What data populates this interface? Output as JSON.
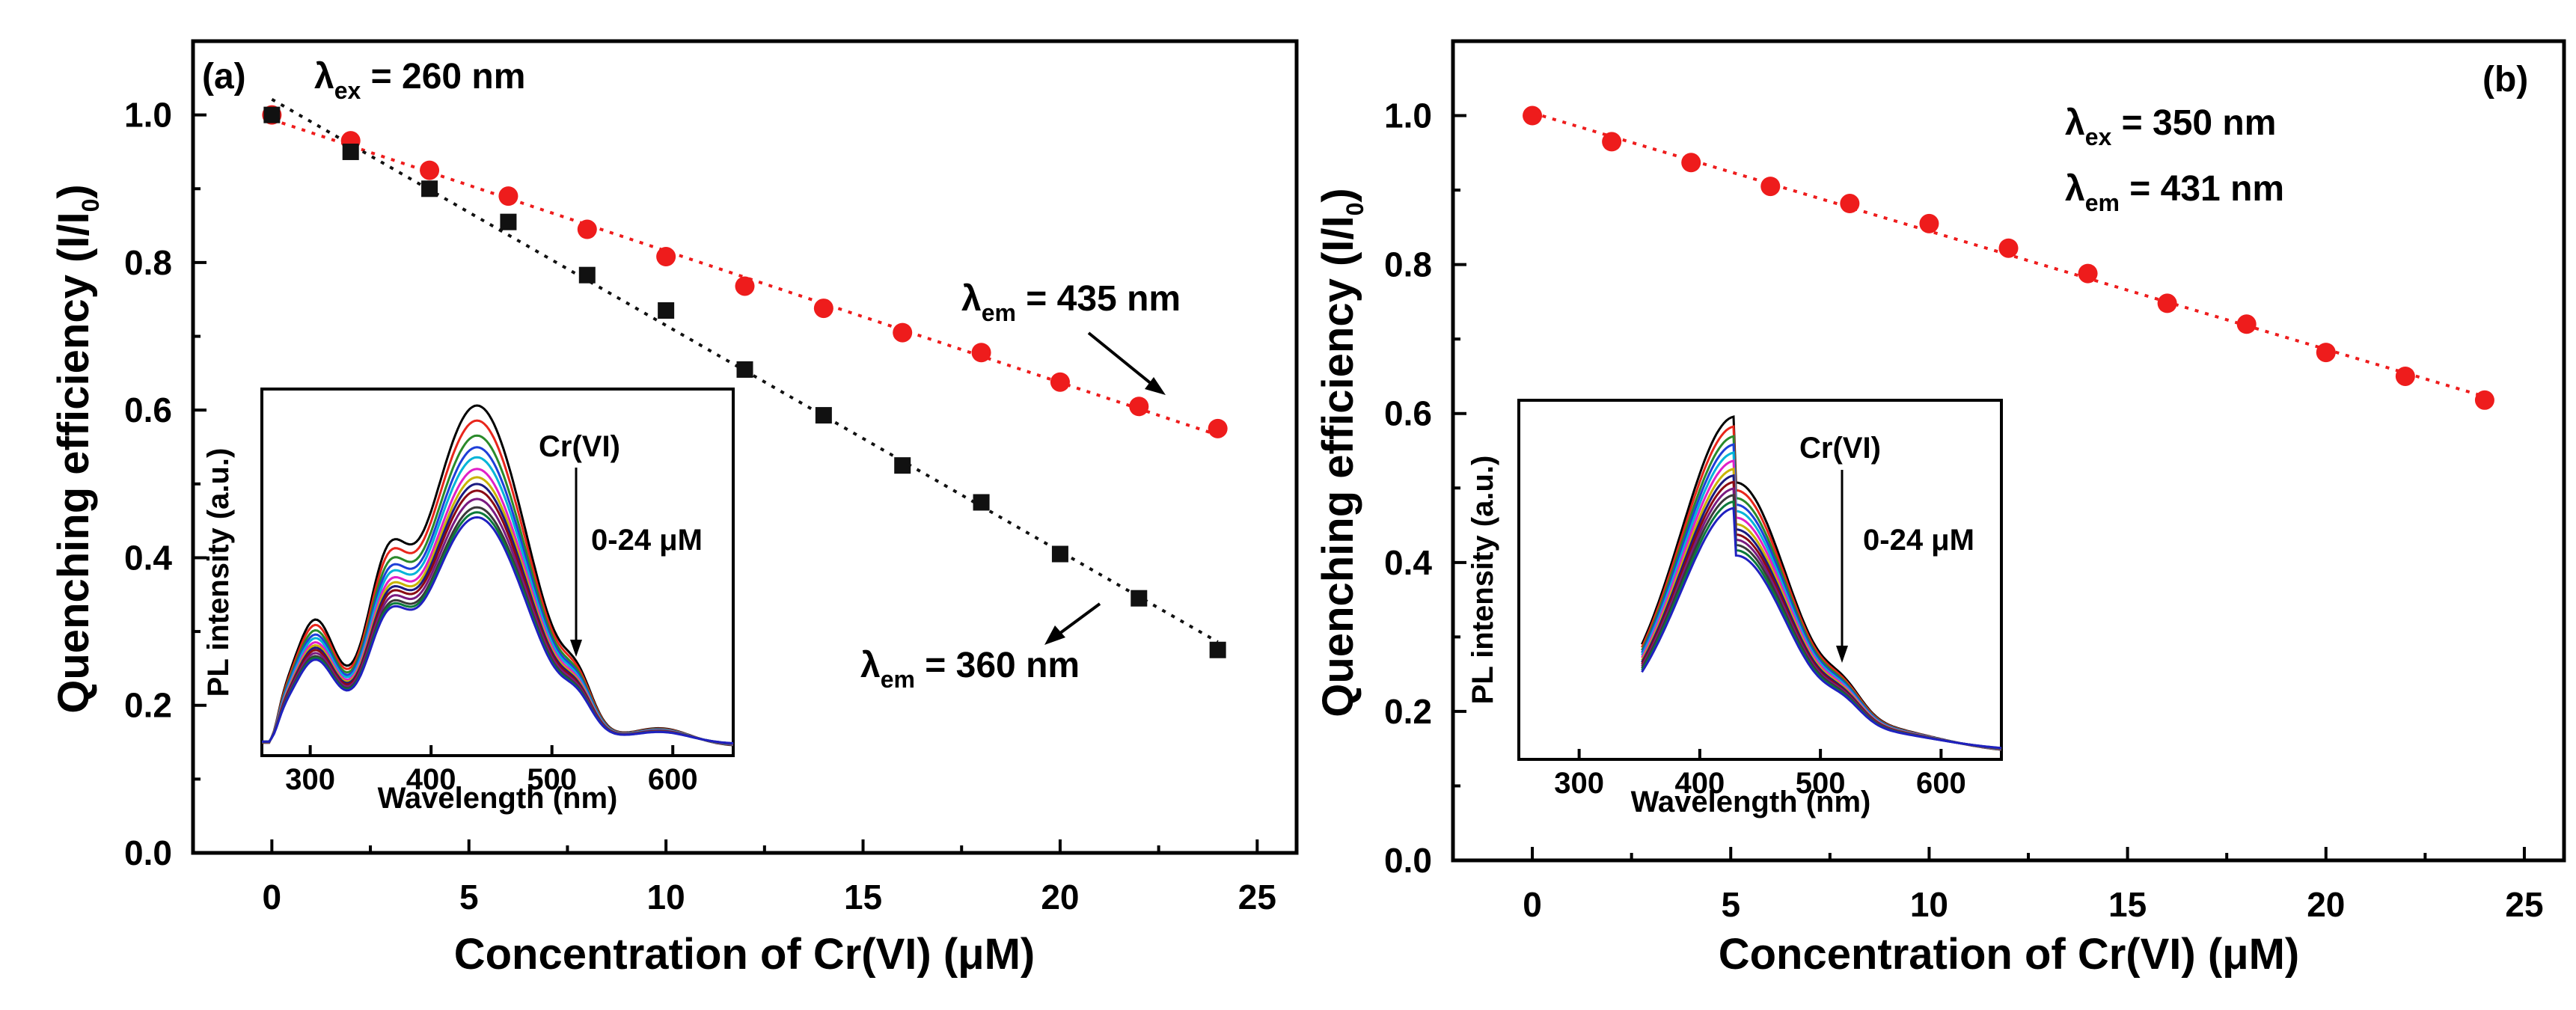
{
  "chart_data": [
    {
      "panel_label": "(a)",
      "type": "scatter",
      "xlabel": "Concentration of Cr(VI) (μM)",
      "ylabel": "Quenching efficiency (I/I",
      "ylabel_sub": "0",
      "ylabel_end": ")",
      "xlim": [
        -2,
        26
      ],
      "ylim": [
        0,
        1.1
      ],
      "xticks": [
        "0",
        "5",
        "10",
        "15",
        "20",
        "25"
      ],
      "yticks": [
        "0.0",
        "0.2",
        "0.4",
        "0.6",
        "0.8",
        "1.0"
      ],
      "excitation": {
        "symbol": "λ",
        "sub": "ex",
        "text": " = 260 nm"
      },
      "series": [
        {
          "name": "λem = 435 nm",
          "marker": "circle",
          "color": "#ee1c1c",
          "x": [
            0,
            2,
            4,
            6,
            8,
            10,
            12,
            14,
            16,
            18,
            20,
            22,
            24
          ],
          "y": [
            1.0,
            0.965,
            0.925,
            0.89,
            0.845,
            0.808,
            0.768,
            0.738,
            0.705,
            0.678,
            0.638,
            0.605,
            0.575
          ]
        },
        {
          "name": "λem = 360 nm",
          "marker": "square",
          "color": "#111111",
          "x": [
            0,
            2,
            4,
            6,
            8,
            10,
            12,
            14,
            16,
            18,
            20,
            22,
            24
          ],
          "y": [
            1.0,
            0.95,
            0.9,
            0.855,
            0.783,
            0.735,
            0.655,
            0.593,
            0.525,
            0.475,
            0.405,
            0.345,
            0.275
          ]
        }
      ],
      "labels": [
        {
          "symbol": "λ",
          "sub": "em",
          "text": " = 435 nm"
        },
        {
          "symbol": "λ",
          "sub": "em",
          "text": " = 360 nm"
        }
      ],
      "inset": {
        "xlabel": "Wavelength (nm)",
        "ylabel": "PL intensity (a.u.)",
        "xlim": [
          260,
          650
        ],
        "xticks": [
          "300",
          "400",
          "500",
          "600"
        ],
        "annotation_top": "Cr(VI)",
        "annotation_range": "0-24 μM",
        "type": "line",
        "peak_scales": [
          1.0,
          0.955,
          0.91,
          0.875,
          0.845,
          0.81,
          0.785,
          0.765,
          0.745,
          0.72,
          0.695,
          0.68,
          0.665
        ],
        "colors": [
          "#000000",
          "#e8261b",
          "#2a8a2a",
          "#1e3fd8",
          "#00b4d8",
          "#e020c8",
          "#c8b400",
          "#1a1a80",
          "#8b0a14",
          "#7a1a80",
          "#3a3a3a",
          "#0a7a3a",
          "#2020c0"
        ]
      }
    },
    {
      "panel_label": "(b)",
      "type": "scatter",
      "xlabel": "Concentration of Cr(VI) (μM)",
      "ylabel": "Quenching efficiency (I/I",
      "ylabel_sub": "0",
      "ylabel_end": ")",
      "xlim": [
        -2,
        26
      ],
      "ylim": [
        0,
        1.1
      ],
      "xticks": [
        "0",
        "5",
        "10",
        "15",
        "20",
        "25"
      ],
      "yticks": [
        "0.0",
        "0.2",
        "0.4",
        "0.6",
        "0.8",
        "1.0"
      ],
      "excitation": {
        "symbol": "λ",
        "sub": "ex",
        "text": " = 350 nm"
      },
      "emission": {
        "symbol": "λ",
        "sub": "em",
        "text": " = 431 nm"
      },
      "series": [
        {
          "name": "λem = 431 nm",
          "marker": "circle",
          "color": "#ee1c1c",
          "x": [
            0,
            2,
            4,
            6,
            8,
            10,
            12,
            14,
            16,
            18,
            20,
            22,
            24
          ],
          "y": [
            1.0,
            0.965,
            0.937,
            0.905,
            0.882,
            0.855,
            0.822,
            0.788,
            0.748,
            0.72,
            0.682,
            0.65,
            0.618
          ]
        }
      ],
      "inset": {
        "xlabel": "Wavelength (nm)",
        "ylabel": "PL intensity (a.u.)",
        "xlim": [
          250,
          650
        ],
        "xticks": [
          "300",
          "400",
          "500",
          "600"
        ],
        "annotation_top": "Cr(VI)",
        "annotation_range": "0-24 μM",
        "type": "line",
        "peak_scales": [
          1.0,
          0.97,
          0.94,
          0.915,
          0.89,
          0.865,
          0.84,
          0.82,
          0.8,
          0.78,
          0.76,
          0.74,
          0.72
        ],
        "colors": [
          "#000000",
          "#e8261b",
          "#2a8a2a",
          "#1e3fd8",
          "#00b4d8",
          "#e020c8",
          "#c8b400",
          "#1a1a80",
          "#8b0a14",
          "#7a1a80",
          "#3a3a3a",
          "#0a7a3a",
          "#2020c0"
        ]
      }
    }
  ]
}
